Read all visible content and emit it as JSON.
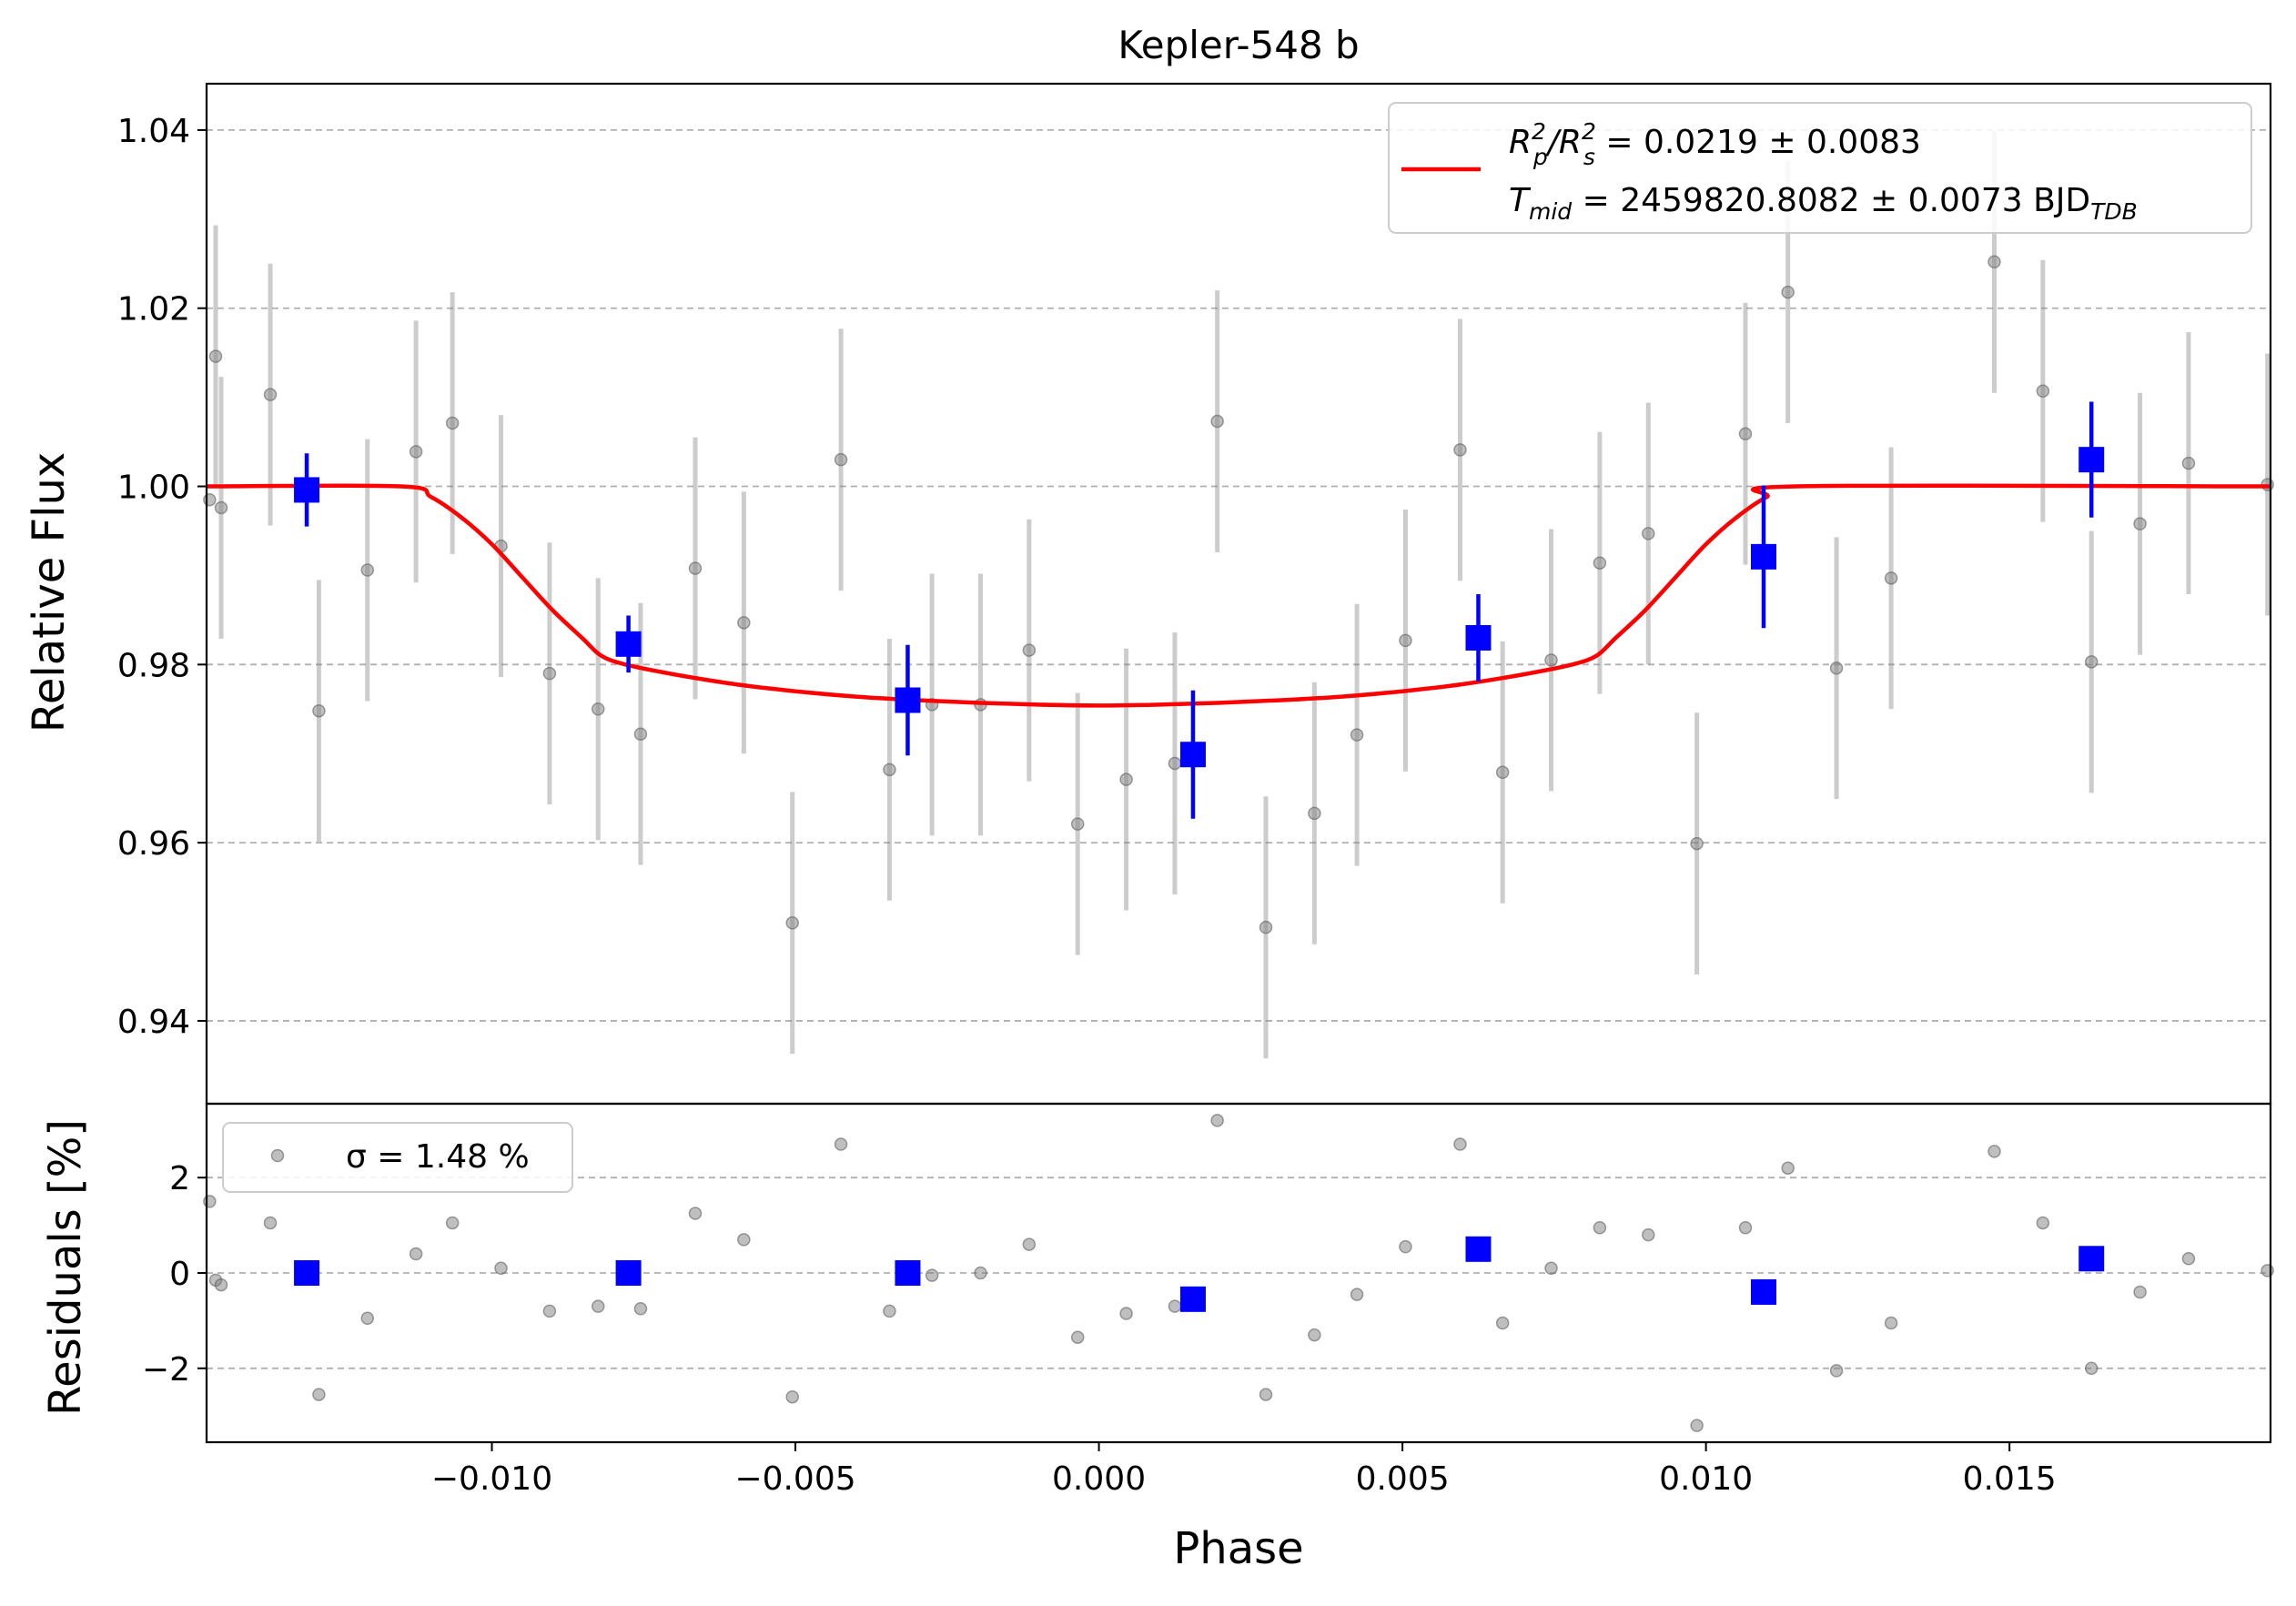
{
  "chart_data": [
    {
      "panel": "top",
      "type": "scatter",
      "title": "Kepler-548 b",
      "ylabel": "Relative Flux",
      "xlim": [
        -0.0147,
        0.0193
      ],
      "ylim": [
        0.9307,
        1.0452
      ],
      "yticks": [
        0.94,
        0.96,
        0.98,
        1.0,
        1.02,
        1.04
      ],
      "ytick_labels": [
        "0.94",
        "0.96",
        "0.98",
        "1.00",
        "1.02",
        "1.04"
      ],
      "grid": "y-dashed",
      "legend_position": "top-right",
      "legend": {
        "model_line1_parts": [
          "R",
          "p",
          "2",
          "/R",
          "s",
          "2",
          " = 0.0219 ± 0.0083"
        ],
        "model_line2_parts": [
          "T",
          "mid",
          " = 2459820.8082 ± 0.0073 BJD",
          "TDB"
        ]
      },
      "colors": {
        "data": "#808080",
        "binned": "#0000ff",
        "model": "#ff0000",
        "grid": "#b0b0b0"
      },
      "series": [
        {
          "kind": "data",
          "points": [
            {
              "x": -0.01465,
              "y": 0.9985,
              "err": 0
            },
            {
              "x": -0.01455,
              "y": 1.0146,
              "err": 0.0147
            },
            {
              "x": -0.01446,
              "y": 0.9976,
              "err": 0.0147
            },
            {
              "x": -0.01365,
              "y": 1.0103,
              "err": 0.0147
            },
            {
              "x": -0.01285,
              "y": 0.9748,
              "err": 0.0147
            },
            {
              "x": -0.01205,
              "y": 0.9906,
              "err": 0.0147
            },
            {
              "x": -0.01125,
              "y": 1.0039,
              "err": 0.0147
            },
            {
              "x": -0.01065,
              "y": 1.0071,
              "err": 0.0147
            },
            {
              "x": -0.00985,
              "y": 0.9933,
              "err": 0.0147
            },
            {
              "x": -0.00905,
              "y": 0.979,
              "err": 0.0147
            },
            {
              "x": -0.00825,
              "y": 0.975,
              "err": 0.0147
            },
            {
              "x": -0.00755,
              "y": 0.9722,
              "err": 0.0147
            },
            {
              "x": -0.00665,
              "y": 0.9908,
              "err": 0.0147
            },
            {
              "x": -0.00585,
              "y": 0.9847,
              "err": 0.0147
            },
            {
              "x": -0.00505,
              "y": 0.951,
              "err": 0.0147
            },
            {
              "x": -0.00425,
              "y": 1.003,
              "err": 0.0147
            },
            {
              "x": -0.00345,
              "y": 0.9682,
              "err": 0.0147
            },
            {
              "x": -0.00275,
              "y": 0.9755,
              "err": 0.0147
            },
            {
              "x": -0.00195,
              "y": 0.9755,
              "err": 0.0147
            },
            {
              "x": -0.00115,
              "y": 0.9816,
              "err": 0.0147
            },
            {
              "x": -0.00035,
              "y": 0.9621,
              "err": 0.0147
            },
            {
              "x": 0.00045,
              "y": 0.9671,
              "err": 0.0147
            },
            {
              "x": 0.00125,
              "y": 0.9689,
              "err": 0.0147
            },
            {
              "x": 0.00195,
              "y": 1.0073,
              "err": 0.0147
            },
            {
              "x": 0.00275,
              "y": 0.9505,
              "err": 0.0147
            },
            {
              "x": 0.00355,
              "y": 0.9633,
              "err": 0.0147
            },
            {
              "x": 0.00425,
              "y": 0.9721,
              "err": 0.0147
            },
            {
              "x": 0.00505,
              "y": 0.9827,
              "err": 0.0147
            },
            {
              "x": 0.00595,
              "y": 1.0041,
              "err": 0.0147
            },
            {
              "x": 0.00665,
              "y": 0.9679,
              "err": 0.0147
            },
            {
              "x": 0.00745,
              "y": 0.9805,
              "err": 0.0147
            },
            {
              "x": 0.00825,
              "y": 0.9914,
              "err": 0.0147
            },
            {
              "x": 0.00905,
              "y": 0.9947,
              "err": 0.0147
            },
            {
              "x": 0.00985,
              "y": 0.9599,
              "err": 0.0147
            },
            {
              "x": 0.01065,
              "y": 1.0059,
              "err": 0.0147
            },
            {
              "x": 0.01135,
              "y": 1.0218,
              "err": 0.0147
            },
            {
              "x": 0.01215,
              "y": 0.9796,
              "err": 0.0147
            },
            {
              "x": 0.01305,
              "y": 0.9897,
              "err": 0.0147
            },
            {
              "x": 0.01475,
              "y": 1.0252,
              "err": 0.0147
            },
            {
              "x": 0.01555,
              "y": 1.0107,
              "err": 0.0147
            },
            {
              "x": 0.01635,
              "y": 0.9803,
              "err": 0.0147
            },
            {
              "x": 0.01715,
              "y": 0.9958,
              "err": 0.0147
            },
            {
              "x": 0.01795,
              "y": 1.0026,
              "err": 0.0147
            },
            {
              "x": 0.01925,
              "y": 1.0002,
              "err": 0.0147
            }
          ]
        },
        {
          "kind": "binned",
          "points": [
            {
              "x": -0.01305,
              "y": 0.9996,
              "err": 0.0041
            },
            {
              "x": -0.00775,
              "y": 0.9823,
              "err": 0.0032
            },
            {
              "x": -0.00315,
              "y": 0.976,
              "err": 0.0062
            },
            {
              "x": 0.00155,
              "y": 0.9699,
              "err": 0.0072
            },
            {
              "x": 0.00625,
              "y": 0.983,
              "err": 0.0049
            },
            {
              "x": 0.01095,
              "y": 0.9921,
              "err": 0.008
            },
            {
              "x": 0.01635,
              "y": 1.003,
              "err": 0.0065
            }
          ]
        },
        {
          "kind": "model",
          "points": [
            {
              "x": -0.0147,
              "y": 1.0
            },
            {
              "x": -0.0115,
              "y": 1.0
            },
            {
              "x": -0.011,
              "y": 0.9988
            },
            {
              "x": -0.0105,
              "y": 0.9965
            },
            {
              "x": -0.01,
              "y": 0.9935
            },
            {
              "x": -0.0095,
              "y": 0.9898
            },
            {
              "x": -0.009,
              "y": 0.9861
            },
            {
              "x": -0.0085,
              "y": 0.9829
            },
            {
              "x": -0.0082,
              "y": 0.981
            },
            {
              "x": -0.0078,
              "y": 0.98
            },
            {
              "x": -0.007,
              "y": 0.9789
            },
            {
              "x": -0.006,
              "y": 0.9778
            },
            {
              "x": -0.005,
              "y": 0.977
            },
            {
              "x": -0.004,
              "y": 0.9764
            },
            {
              "x": -0.003,
              "y": 0.976
            },
            {
              "x": -0.002,
              "y": 0.9757
            },
            {
              "x": -0.001,
              "y": 0.9755
            },
            {
              "x": 0.0,
              "y": 0.9754
            },
            {
              "x": 0.001,
              "y": 0.9755
            },
            {
              "x": 0.002,
              "y": 0.9757
            },
            {
              "x": 0.003,
              "y": 0.976
            },
            {
              "x": 0.004,
              "y": 0.9764
            },
            {
              "x": 0.005,
              "y": 0.977
            },
            {
              "x": 0.006,
              "y": 0.9778
            },
            {
              "x": 0.007,
              "y": 0.9789
            },
            {
              "x": 0.0078,
              "y": 0.98
            },
            {
              "x": 0.0082,
              "y": 0.981
            },
            {
              "x": 0.0085,
              "y": 0.9829
            },
            {
              "x": 0.009,
              "y": 0.9861
            },
            {
              "x": 0.0095,
              "y": 0.9898
            },
            {
              "x": 0.01,
              "y": 0.9935
            },
            {
              "x": 0.0105,
              "y": 0.9965
            },
            {
              "x": 0.011,
              "y": 0.9988
            },
            {
              "x": 0.0115,
              "y": 1.0
            },
            {
              "x": 0.0193,
              "y": 1.0
            }
          ]
        }
      ]
    },
    {
      "panel": "bottom",
      "type": "scatter",
      "xlabel": "Phase",
      "ylabel": "Residuals [%]",
      "xlim": [
        -0.0147,
        0.0193
      ],
      "ylim": [
        -3.55,
        3.55
      ],
      "xticks": [
        -0.01,
        -0.005,
        0.0,
        0.005,
        0.01,
        0.015
      ],
      "xtick_labels": [
        "−0.010",
        "−0.005",
        "0.000",
        "0.005",
        "0.010",
        "0.015"
      ],
      "yticks": [
        -2,
        0,
        2
      ],
      "ytick_labels": [
        "−2",
        "0",
        "2"
      ],
      "grid": "y-dashed",
      "legend_position": "top-left",
      "legend": {
        "sigma_label": "σ = 1.48 %"
      },
      "series": [
        {
          "kind": "data",
          "points": [
            {
              "x": -0.01465,
              "y": 1.5
            },
            {
              "x": -0.01455,
              "y": -0.15
            },
            {
              "x": -0.01446,
              "y": -0.25
            },
            {
              "x": -0.01365,
              "y": 1.05
            },
            {
              "x": -0.01285,
              "y": -2.55
            },
            {
              "x": -0.01205,
              "y": -0.95
            },
            {
              "x": -0.01125,
              "y": 0.4
            },
            {
              "x": -0.01065,
              "y": 1.05
            },
            {
              "x": -0.00985,
              "y": 0.1
            },
            {
              "x": -0.00905,
              "y": -0.8
            },
            {
              "x": -0.00825,
              "y": -0.7
            },
            {
              "x": -0.00755,
              "y": -0.75
            },
            {
              "x": -0.00665,
              "y": 1.25
            },
            {
              "x": -0.00585,
              "y": 0.7
            },
            {
              "x": -0.00505,
              "y": -2.6
            },
            {
              "x": -0.00425,
              "y": 2.7
            },
            {
              "x": -0.00345,
              "y": -0.8
            },
            {
              "x": -0.00275,
              "y": -0.05
            },
            {
              "x": -0.00195,
              "y": 0.0
            },
            {
              "x": -0.00115,
              "y": 0.6
            },
            {
              "x": -0.00035,
              "y": -1.35
            },
            {
              "x": 0.00045,
              "y": -0.85
            },
            {
              "x": 0.00125,
              "y": -0.7
            },
            {
              "x": 0.00195,
              "y": 3.2
            },
            {
              "x": 0.00275,
              "y": -2.55
            },
            {
              "x": 0.00355,
              "y": -1.3
            },
            {
              "x": 0.00425,
              "y": -0.45
            },
            {
              "x": 0.00505,
              "y": 0.55
            },
            {
              "x": 0.00595,
              "y": 2.7
            },
            {
              "x": 0.00665,
              "y": -1.05
            },
            {
              "x": 0.00745,
              "y": 0.1
            },
            {
              "x": 0.00825,
              "y": 0.95
            },
            {
              "x": 0.00905,
              "y": 0.8
            },
            {
              "x": 0.00985,
              "y": -3.2
            },
            {
              "x": 0.01065,
              "y": 0.95
            },
            {
              "x": 0.01135,
              "y": 2.2
            },
            {
              "x": 0.01215,
              "y": -2.05
            },
            {
              "x": 0.01305,
              "y": -1.05
            },
            {
              "x": 0.01475,
              "y": 2.55
            },
            {
              "x": 0.01555,
              "y": 1.05
            },
            {
              "x": 0.01635,
              "y": -2.0
            },
            {
              "x": 0.01715,
              "y": -0.4
            },
            {
              "x": 0.01795,
              "y": 0.3
            },
            {
              "x": 0.01925,
              "y": 0.05
            }
          ]
        },
        {
          "kind": "binned",
          "points": [
            {
              "x": -0.01305,
              "y": 0.0
            },
            {
              "x": -0.00775,
              "y": 0.0
            },
            {
              "x": -0.00315,
              "y": 0.0
            },
            {
              "x": 0.00155,
              "y": -0.55
            },
            {
              "x": 0.00625,
              "y": 0.5
            },
            {
              "x": 0.01095,
              "y": -0.4
            },
            {
              "x": 0.01635,
              "y": 0.3
            }
          ]
        }
      ]
    }
  ]
}
